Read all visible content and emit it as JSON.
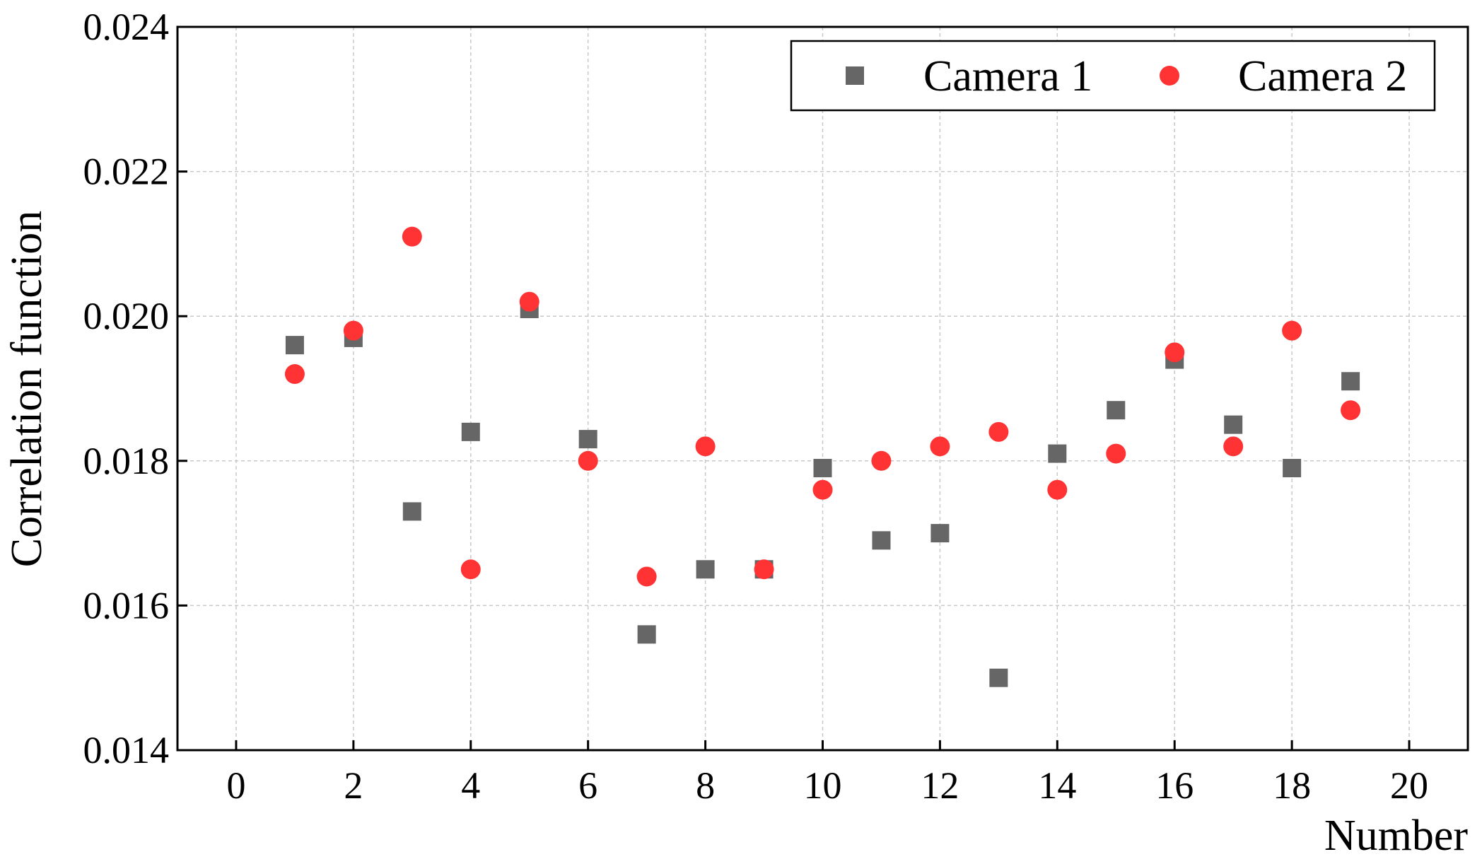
{
  "chart_data": {
    "type": "scatter",
    "x_label": "Number",
    "y_label": "Correlation function",
    "x": [
      1,
      2,
      3,
      4,
      5,
      6,
      7,
      8,
      9,
      10,
      11,
      12,
      13,
      14,
      15,
      16,
      17,
      18,
      19
    ],
    "series": [
      {
        "name": "Camera 1",
        "color": "#666666",
        "marker": "square",
        "values": [
          0.0196,
          0.0197,
          0.0173,
          0.0184,
          0.0201,
          0.0183,
          0.0156,
          0.0165,
          0.0165,
          0.0179,
          0.0169,
          0.017,
          0.015,
          0.0181,
          0.0187,
          0.0194,
          0.0185,
          0.0179,
          0.0191
        ]
      },
      {
        "name": "Camera 2",
        "color": "#ff3333",
        "marker": "circle",
        "values": [
          0.0192,
          0.0198,
          0.0211,
          0.0165,
          0.0202,
          0.018,
          0.0164,
          0.0182,
          0.0165,
          0.0176,
          0.018,
          0.0182,
          0.0184,
          0.0176,
          0.0181,
          0.0195,
          0.0182,
          0.0198,
          0.0187
        ]
      }
    ],
    "xlim": [
      -1,
      21
    ],
    "ylim": [
      0.014,
      0.024
    ],
    "xticks": [
      0,
      2,
      4,
      6,
      8,
      10,
      12,
      14,
      16,
      18,
      20
    ],
    "yticks": [
      0.014,
      0.016,
      0.018,
      {
        "value": 0.02,
        "label": "0.020"
      },
      0.022,
      0.024
    ],
    "grid": true,
    "legend": "top-right"
  }
}
